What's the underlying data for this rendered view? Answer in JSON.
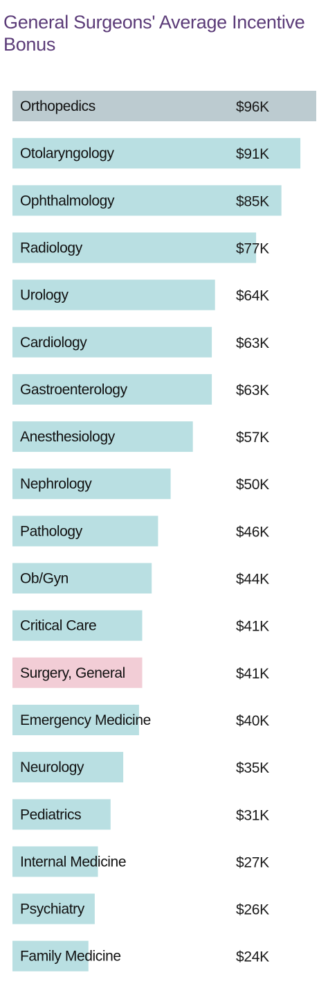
{
  "chart_data": {
    "type": "bar",
    "orientation": "horizontal",
    "title": "General Surgeons' Average Incentive Bonus",
    "xlabel": "",
    "ylabel": "",
    "unit": "$K",
    "xlim": [
      0,
      96
    ],
    "grid": false,
    "legend": "none",
    "colors": {
      "default": "#b9dfe2",
      "top": "#bccbd0",
      "highlight": "#f2cdd6",
      "highlight_text": "#c7517a",
      "title": "#5b3b78"
    },
    "highlight_category": "Surgery, General",
    "categories": [
      "Orthopedics",
      "Otolaryngology",
      "Ophthalmology",
      "Radiology",
      "Urology",
      "Cardiology",
      "Gastroenterology",
      "Anesthesiology",
      "Nephrology",
      "Pathology",
      "Ob/Gyn",
      "Critical Care",
      "Surgery, General",
      "Emergency Medicine",
      "Neurology",
      "Pediatrics",
      "Internal Medicine",
      "Psychiatry",
      "Family Medicine"
    ],
    "values": [
      96,
      91,
      85,
      77,
      64,
      63,
      63,
      57,
      50,
      46,
      44,
      41,
      41,
      40,
      35,
      31,
      27,
      26,
      24
    ],
    "value_labels": [
      "$96K",
      "$91K",
      "$85K",
      "$77K",
      "$64K",
      "$63K",
      "$63K",
      "$57K",
      "$50K",
      "$46K",
      "$44K",
      "$41K",
      "$41K",
      "$40K",
      "$35K",
      "$31K",
      "$27K",
      "$26K",
      "$24K"
    ]
  }
}
